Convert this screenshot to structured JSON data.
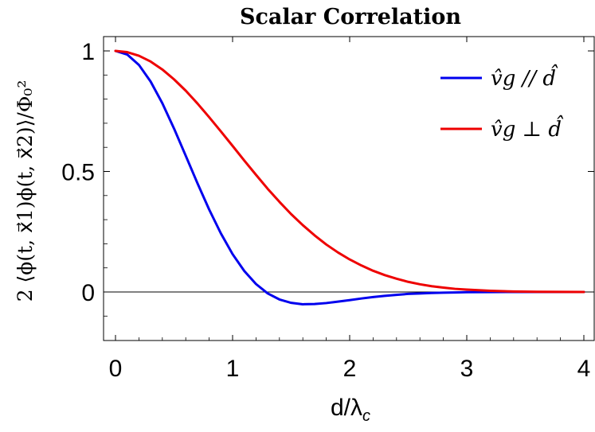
{
  "chart_data": {
    "type": "line",
    "title": "Scalar Correlation",
    "xlabel": "d/λc",
    "ylabel": "2 ⟨ϕ(t, x⃗1)ϕ(t, x⃗2)⟩/Φ₀²",
    "xlim": [
      0,
      4
    ],
    "ylim": [
      -0.2,
      1.05
    ],
    "x_ticks": [
      "0",
      "1",
      "2",
      "3",
      "4"
    ],
    "y_ticks": [
      "0",
      "0.5",
      "1"
    ],
    "reference_line_y": 0,
    "legend_position": "top-right",
    "series": [
      {
        "name": "v̂g // d̂",
        "color": "#0000ee",
        "x": [
          0,
          0.1,
          0.2,
          0.3,
          0.4,
          0.5,
          0.6,
          0.7,
          0.8,
          0.9,
          1.0,
          1.1,
          1.2,
          1.3,
          1.4,
          1.5,
          1.6,
          1.7,
          1.8,
          1.9,
          2.0,
          2.1,
          2.2,
          2.3,
          2.4,
          2.5,
          2.6,
          2.7,
          2.8,
          2.9,
          3.0,
          3.2,
          3.4,
          3.6,
          3.8,
          4.0
        ],
        "y": [
          1.0,
          0.985,
          0.942,
          0.873,
          0.783,
          0.678,
          0.565,
          0.451,
          0.342,
          0.243,
          0.157,
          0.087,
          0.033,
          -0.006,
          -0.031,
          -0.045,
          -0.051,
          -0.05,
          -0.046,
          -0.04,
          -0.034,
          -0.027,
          -0.021,
          -0.016,
          -0.012,
          -0.008,
          -0.006,
          -0.004,
          -0.003,
          -0.002,
          -0.001,
          -0.0005,
          0,
          0,
          0,
          0
        ]
      },
      {
        "name": "v̂g ⊥ d̂",
        "color": "#ee0000",
        "x": [
          0,
          0.1,
          0.2,
          0.3,
          0.4,
          0.5,
          0.6,
          0.7,
          0.8,
          0.9,
          1.0,
          1.1,
          1.2,
          1.3,
          1.4,
          1.5,
          1.6,
          1.7,
          1.8,
          1.9,
          2.0,
          2.1,
          2.2,
          2.3,
          2.4,
          2.5,
          2.6,
          2.7,
          2.8,
          2.9,
          3.0,
          3.2,
          3.4,
          3.6,
          3.8,
          4.0
        ],
        "y": [
          1.0,
          0.995,
          0.98,
          0.956,
          0.923,
          0.882,
          0.835,
          0.782,
          0.725,
          0.666,
          0.606,
          0.545,
          0.486,
          0.428,
          0.374,
          0.323,
          0.277,
          0.235,
          0.197,
          0.164,
          0.135,
          0.11,
          0.088,
          0.07,
          0.055,
          0.042,
          0.032,
          0.024,
          0.018,
          0.013,
          0.01,
          0.005,
          0.002,
          0.001,
          0.0005,
          0
        ]
      }
    ]
  }
}
